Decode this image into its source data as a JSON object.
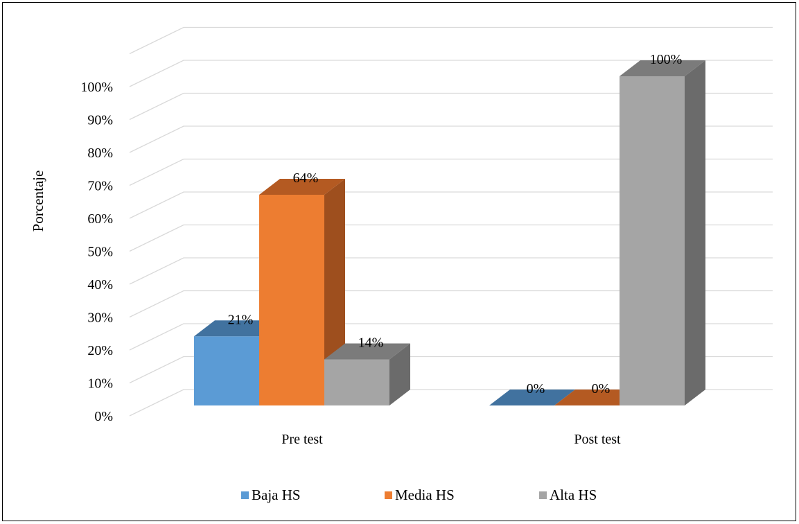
{
  "chart_data": {
    "type": "bar",
    "categories": [
      "Pre test",
      "Post test"
    ],
    "series": [
      {
        "name": "Baja HS",
        "values": [
          21,
          0
        ],
        "labels": [
          "21%",
          "0%"
        ],
        "color": "#5b9bd5",
        "side": "#3e6f9e",
        "top": "#41729f"
      },
      {
        "name": "Media HS",
        "values": [
          64,
          0
        ],
        "labels": [
          "64%",
          "0%"
        ],
        "color": "#ed7d31",
        "side": "#9e4f1e",
        "top": "#b45a22"
      },
      {
        "name": "Alta HS",
        "values": [
          14,
          100
        ],
        "labels": [
          "14%",
          "100%"
        ],
        "color": "#a5a5a5",
        "side": "#6b6b6b",
        "top": "#7b7b7b"
      }
    ],
    "yticks": [
      "0%",
      "10%",
      "20%",
      "30%",
      "40%",
      "50%",
      "60%",
      "70%",
      "80%",
      "90%",
      "100%"
    ],
    "ylim": [
      0,
      110
    ],
    "ylabel": "Porcentaje",
    "xlabel": "",
    "title": "",
    "grid": true,
    "legend": "bottom"
  }
}
